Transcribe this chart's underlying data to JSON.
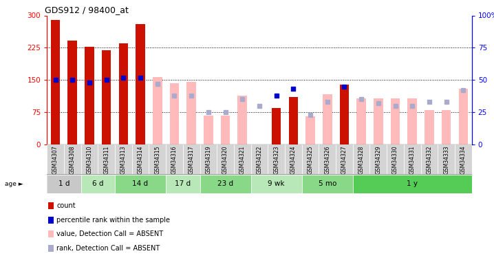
{
  "title": "GDS912 / 98400_at",
  "samples": [
    "GSM34307",
    "GSM34308",
    "GSM34310",
    "GSM34311",
    "GSM34313",
    "GSM34314",
    "GSM34315",
    "GSM34316",
    "GSM34317",
    "GSM34319",
    "GSM34320",
    "GSM34321",
    "GSM34322",
    "GSM34323",
    "GSM34324",
    "GSM34325",
    "GSM34326",
    "GSM34327",
    "GSM34328",
    "GSM34329",
    "GSM34330",
    "GSM34331",
    "GSM34332",
    "GSM34333",
    "GSM34334"
  ],
  "count_present": [
    290,
    242,
    228,
    220,
    236,
    280,
    null,
    null,
    null,
    null,
    null,
    null,
    null,
    85,
    110,
    null,
    null,
    140,
    null,
    null,
    null,
    null,
    null,
    null,
    null
  ],
  "count_absent": [
    null,
    null,
    null,
    null,
    null,
    null,
    157,
    143,
    146,
    68,
    68,
    113,
    null,
    null,
    null,
    65,
    117,
    null,
    108,
    108,
    108,
    108,
    80,
    80,
    130
  ],
  "rank_present": [
    50,
    50,
    48,
    50,
    52,
    52,
    null,
    null,
    null,
    null,
    null,
    null,
    null,
    38,
    43,
    null,
    null,
    45,
    null,
    null,
    null,
    null,
    null,
    null,
    null
  ],
  "rank_absent": [
    null,
    null,
    null,
    null,
    null,
    null,
    47,
    38,
    38,
    25,
    25,
    35,
    30,
    null,
    null,
    23,
    33,
    null,
    35,
    32,
    30,
    30,
    33,
    33,
    42
  ],
  "age_groups": [
    {
      "label": "1 d",
      "start": 0,
      "end": 2,
      "color": "#c8c8c8"
    },
    {
      "label": "6 d",
      "start": 2,
      "end": 4,
      "color": "#b8e8b8"
    },
    {
      "label": "14 d",
      "start": 4,
      "end": 7,
      "color": "#88d888"
    },
    {
      "label": "17 d",
      "start": 7,
      "end": 9,
      "color": "#b8e8b8"
    },
    {
      "label": "23 d",
      "start": 9,
      "end": 12,
      "color": "#88d888"
    },
    {
      "label": "9 wk",
      "start": 12,
      "end": 15,
      "color": "#b8e8b8"
    },
    {
      "label": "5 mo",
      "start": 15,
      "end": 18,
      "color": "#88d888"
    },
    {
      "label": "1 y",
      "start": 18,
      "end": 25,
      "color": "#55cc55"
    }
  ],
  "ylim_left": [
    0,
    300
  ],
  "ylim_right": [
    0,
    100
  ],
  "yticks_left": [
    0,
    75,
    150,
    225,
    300
  ],
  "yticks_right": [
    0,
    25,
    50,
    75,
    100
  ],
  "count_present_color": "#cc1100",
  "count_absent_color": "#ffbbbb",
  "rank_present_color": "#0000cc",
  "rank_absent_color": "#aaaacc",
  "legend": [
    {
      "label": "count",
      "color": "#cc1100"
    },
    {
      "label": "percentile rank within the sample",
      "color": "#0000cc"
    },
    {
      "label": "value, Detection Call = ABSENT",
      "color": "#ffbbbb"
    },
    {
      "label": "rank, Detection Call = ABSENT",
      "color": "#aaaacc"
    }
  ]
}
